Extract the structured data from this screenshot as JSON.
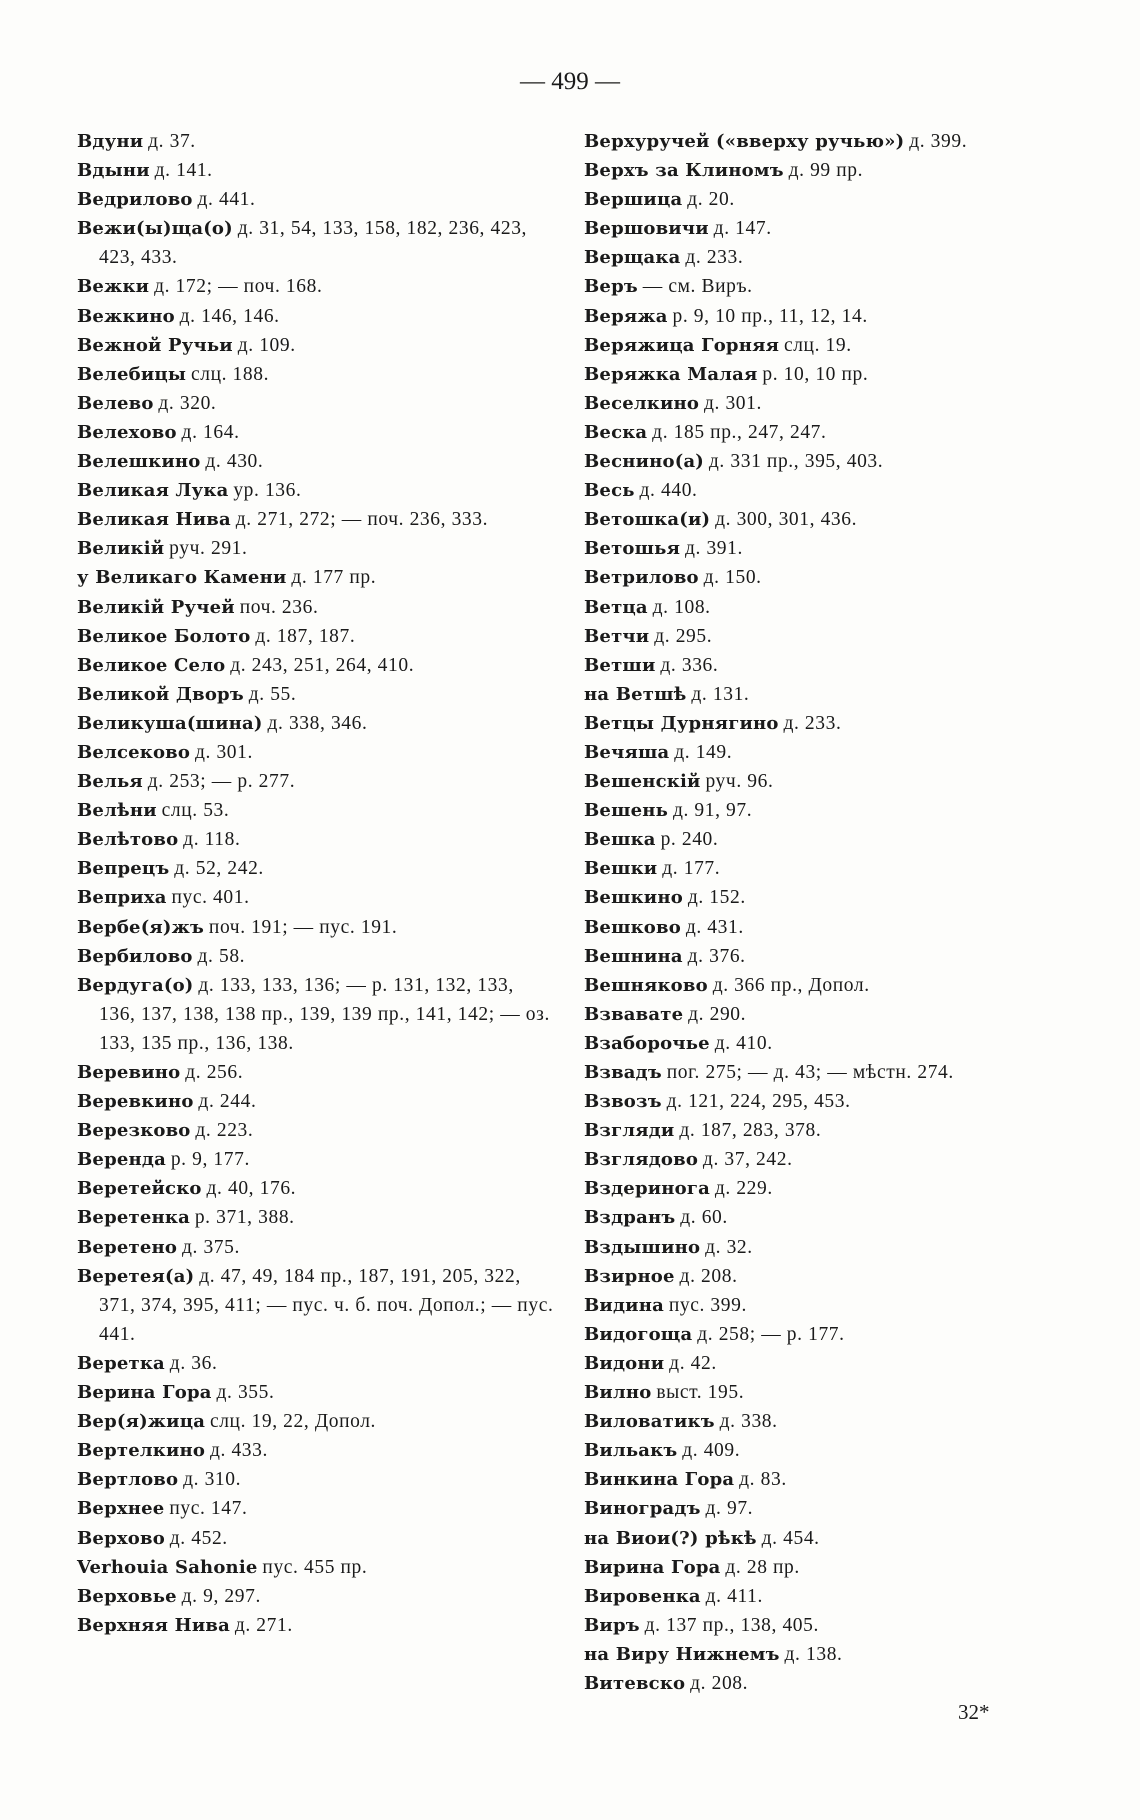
{
  "page_number": "— 499 —",
  "signature_mark": "32*",
  "left_column": [
    {
      "name": "Вдуни",
      "rest": "д. 37."
    },
    {
      "name": "Вдыни",
      "rest": "д. 141."
    },
    {
      "name": "Ведрилово",
      "rest": "д. 441."
    },
    {
      "name": "Вежи(ы)ща(о)",
      "rest": "д. 31, 54, 133, 158, 182, 236, 423, 423, 433."
    },
    {
      "name": "Вежки",
      "rest": "д. 172; — поч. 168."
    },
    {
      "name": "Вежкино",
      "rest": "д. 146, 146."
    },
    {
      "name": "Вежной Ручьи",
      "rest": "д. 109."
    },
    {
      "name": "Велебицы",
      "rest": "слц. 188."
    },
    {
      "name": "Велево",
      "rest": "д. 320."
    },
    {
      "name": "Велехово",
      "rest": "д. 164."
    },
    {
      "name": "Велешкино",
      "rest": "д. 430."
    },
    {
      "name": "Великая Лука",
      "rest": "ур. 136."
    },
    {
      "name": "Великая Нива",
      "rest": "д. 271, 272; — поч. 236, 333."
    },
    {
      "name": "Великій",
      "rest": "руч. 291."
    },
    {
      "name": "у Великаго Камени",
      "rest": "д. 177 пр."
    },
    {
      "name": "Великій Ручей",
      "rest": "поч. 236."
    },
    {
      "name": "Великое Болото",
      "rest": "д. 187, 187."
    },
    {
      "name": "Великое Село",
      "rest": "д. 243, 251, 264, 410."
    },
    {
      "name": "Великой Дворъ",
      "rest": "д. 55."
    },
    {
      "name": "Великуша(шина)",
      "rest": "д. 338, 346."
    },
    {
      "name": "Велсеково",
      "rest": "д. 301."
    },
    {
      "name": "Велья",
      "rest": "д. 253; — р. 277."
    },
    {
      "name": "Велѣни",
      "rest": "слц. 53."
    },
    {
      "name": "Велѣтово",
      "rest": "д. 118."
    },
    {
      "name": "Вепрецъ",
      "rest": "д. 52, 242."
    },
    {
      "name": "Веприха",
      "rest": "пус. 401."
    },
    {
      "name": "Вербе(я)жъ",
      "rest": "поч. 191; — пус. 191."
    },
    {
      "name": "Вербилово",
      "rest": "д. 58."
    },
    {
      "name": "Вердуга(о)",
      "rest": "д. 133, 133, 136; — р. 131, 132, 133, 136, 137, 138, 138 пр., 139, 139 пр., 141, 142; — оз. 133, 135 пр., 136, 138."
    },
    {
      "name": "Веревино",
      "rest": "д. 256."
    },
    {
      "name": "Веревкино",
      "rest": "д. 244."
    },
    {
      "name": "Верезково",
      "rest": "д. 223."
    },
    {
      "name": "Веренда",
      "rest": "р. 9, 177."
    },
    {
      "name": "Веретейско",
      "rest": "д. 40, 176."
    },
    {
      "name": "Веретенка",
      "rest": "р. 371, 388."
    },
    {
      "name": "Веретено",
      "rest": "д. 375."
    },
    {
      "name": "Веретея(а)",
      "rest": "д. 47, 49, 184 пр., 187, 191, 205, 322, 371, 374, 395, 411; — пус. ч. б. поч. Допол.; — пус. 441."
    },
    {
      "name": "Веретка",
      "rest": "д. 36."
    },
    {
      "name": "Верина Гора",
      "rest": "д. 355."
    },
    {
      "name": "Вер(я)жица",
      "rest": "слц. 19, 22, Допол."
    },
    {
      "name": "Вертелкино",
      "rest": "д. 433."
    },
    {
      "name": "Вертлово",
      "rest": "д. 310."
    },
    {
      "name": "Верхнее",
      "rest": "пус. 147."
    },
    {
      "name": "Верхово",
      "rest": "д. 452."
    },
    {
      "name": "Verhouia Sahonie",
      "rest": "пус. 455 пр."
    },
    {
      "name": "Верховье",
      "rest": "д. 9, 297."
    },
    {
      "name": "Верхняя Нива",
      "rest": "д. 271."
    }
  ],
  "right_column": [
    {
      "name": "Верхуручей («вверху ручью»)",
      "rest": "д. 399."
    },
    {
      "name": "Верхъ за Клиномъ",
      "rest": "д. 99 пр."
    },
    {
      "name": "Вершица",
      "rest": "д. 20."
    },
    {
      "name": "Вершовичи",
      "rest": "д. 147."
    },
    {
      "name": "Верщака",
      "rest": "д. 233."
    },
    {
      "name": "Веръ",
      "rest": "— см. Виръ."
    },
    {
      "name": "Веряжа",
      "rest": "р. 9, 10 пр., 11, 12, 14."
    },
    {
      "name": "Веряжица Горняя",
      "rest": "слц. 19."
    },
    {
      "name": "Веряжка Малая",
      "rest": "р. 10, 10 пр."
    },
    {
      "name": "Веселкино",
      "rest": "д. 301."
    },
    {
      "name": "Веска",
      "rest": "д. 185 пр., 247, 247."
    },
    {
      "name": "Веснино(а)",
      "rest": "д. 331 пр., 395, 403."
    },
    {
      "name": "Весь",
      "rest": "д. 440."
    },
    {
      "name": "Ветошка(и)",
      "rest": "д. 300, 301, 436."
    },
    {
      "name": "Ветошья",
      "rest": "д. 391."
    },
    {
      "name": "Ветрилово",
      "rest": "д. 150."
    },
    {
      "name": "Ветца",
      "rest": "д. 108."
    },
    {
      "name": "Ветчи",
      "rest": "д. 295."
    },
    {
      "name": "Ветши",
      "rest": "д. 336."
    },
    {
      "name": "на Ветшѣ",
      "rest": "д. 131."
    },
    {
      "name": "Ветцы Дурнягино",
      "rest": "д. 233."
    },
    {
      "name": "Вечяша",
      "rest": "д. 149."
    },
    {
      "name": "Вешенскій",
      "rest": "руч. 96."
    },
    {
      "name": "Вешень",
      "rest": "д. 91, 97."
    },
    {
      "name": "Вешка",
      "rest": "р. 240."
    },
    {
      "name": "Вешки",
      "rest": "д. 177."
    },
    {
      "name": "Вешкино",
      "rest": "д. 152."
    },
    {
      "name": "Вешково",
      "rest": "д. 431."
    },
    {
      "name": "Вешнина",
      "rest": "д. 376."
    },
    {
      "name": "Вешняково",
      "rest": "д. 366 пр., Допол."
    },
    {
      "name": "Взвавате",
      "rest": "д. 290."
    },
    {
      "name": "Взаборочье",
      "rest": "д. 410."
    },
    {
      "name": "Взвадъ",
      "rest": "пог. 275; — д. 43; — мѣстн. 274."
    },
    {
      "name": "Взвозъ",
      "rest": "д. 121, 224, 295, 453."
    },
    {
      "name": "Взгляди",
      "rest": "д. 187, 283, 378."
    },
    {
      "name": "Взглядово",
      "rest": "д. 37, 242."
    },
    {
      "name": "Вздеринога",
      "rest": "д. 229."
    },
    {
      "name": "Вздранъ",
      "rest": "д. 60."
    },
    {
      "name": "Вздышино",
      "rest": "д. 32."
    },
    {
      "name": "Взирное",
      "rest": "д. 208."
    },
    {
      "name": "Видина",
      "rest": "пус. 399."
    },
    {
      "name": "Видогоща",
      "rest": "д. 258; — р. 177."
    },
    {
      "name": "Видони",
      "rest": "д. 42."
    },
    {
      "name": "Вилно",
      "rest": "выст. 195."
    },
    {
      "name": "Виловатикъ",
      "rest": "д. 338."
    },
    {
      "name": "Вильакъ",
      "rest": "д. 409."
    },
    {
      "name": "Винкина Гора",
      "rest": "д. 83."
    },
    {
      "name": "Виноградъ",
      "rest": "д. 97."
    },
    {
      "name": "на Виои(?) рѣкѣ",
      "rest": "д. 454."
    },
    {
      "name": "Вирина Гора",
      "rest": "д. 28 пр."
    },
    {
      "name": "Вировенка",
      "rest": "д. 411."
    },
    {
      "name": "Виръ",
      "rest": "д. 137 пр., 138, 405."
    },
    {
      "name": "на Виру Нижнемъ",
      "rest": "д. 138."
    },
    {
      "name": "Витевско",
      "rest": "д. 208."
    }
  ]
}
